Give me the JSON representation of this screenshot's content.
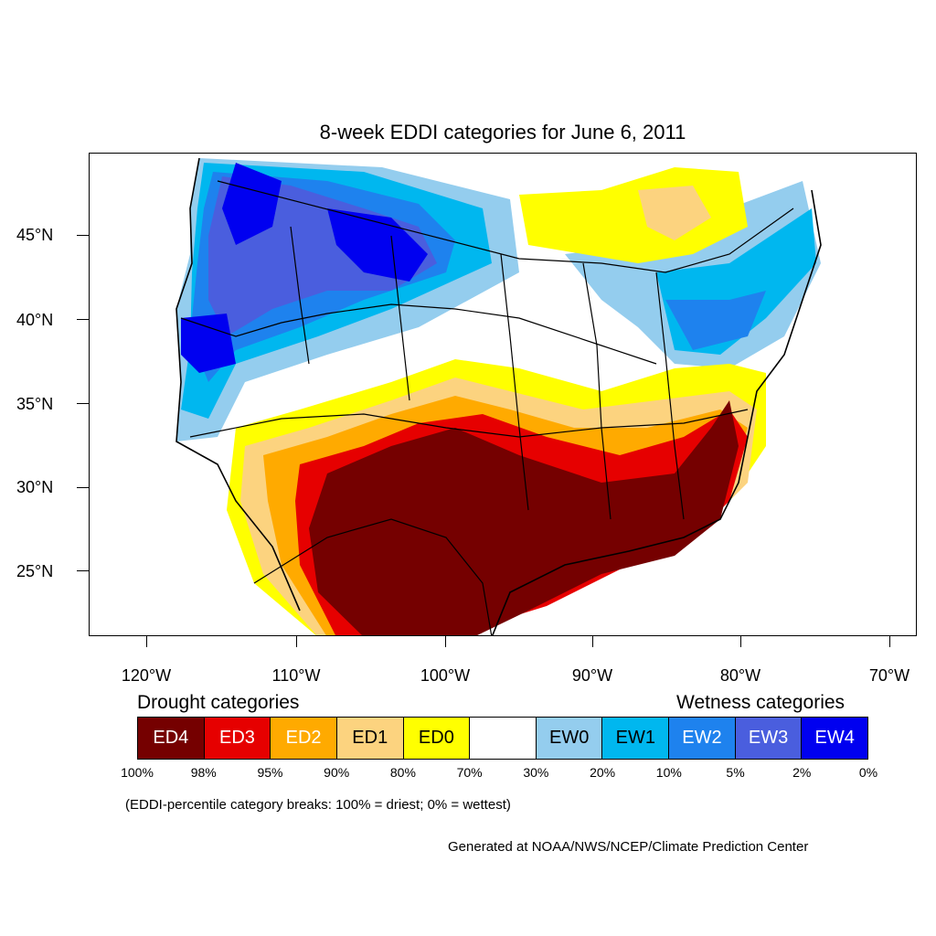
{
  "title": "8-week EDDI categories for June 6, 2011",
  "axes": {
    "lat_labels": [
      "45°N",
      "40°N",
      "35°N",
      "30°N",
      "25°N"
    ],
    "lon_labels": [
      "120°W",
      "110°W",
      "100°W",
      "90°W",
      "80°W",
      "70°W"
    ]
  },
  "legend": {
    "drought_heading": "Drought categories",
    "wetness_heading": "Wetness categories",
    "categories": [
      {
        "label": "ED4",
        "color": "#750000",
        "text_color": "#ffffff"
      },
      {
        "label": "ED3",
        "color": "#e60000",
        "text_color": "#ffffff"
      },
      {
        "label": "ED2",
        "color": "#ffaa00",
        "text_color": "#ffffff"
      },
      {
        "label": "ED1",
        "color": "#fcd37f",
        "text_color": "#000000"
      },
      {
        "label": "ED0",
        "color": "#ffff00",
        "text_color": "#000000"
      },
      {
        "label": "",
        "color": "#ffffff",
        "text_color": "#000000"
      },
      {
        "label": "EW0",
        "color": "#94cdee",
        "text_color": "#000000"
      },
      {
        "label": "EW1",
        "color": "#00b7ef",
        "text_color": "#000000"
      },
      {
        "label": "EW2",
        "color": "#1e82ee",
        "text_color": "#ffffff"
      },
      {
        "label": "EW3",
        "color": "#4a5ede",
        "text_color": "#ffffff"
      },
      {
        "label": "EW4",
        "color": "#0000f0",
        "text_color": "#ffffff"
      }
    ],
    "percentiles": [
      "100%",
      "98%",
      "95%",
      "90%",
      "80%",
      "70%",
      "30%",
      "20%",
      "10%",
      "5%",
      "2%",
      "0%"
    ]
  },
  "note": "(EDDI-percentile category breaks: 100% = driest; 0% = wettest)",
  "credit": "Generated at NOAA/NWS/NCEP/Climate Prediction Center"
}
